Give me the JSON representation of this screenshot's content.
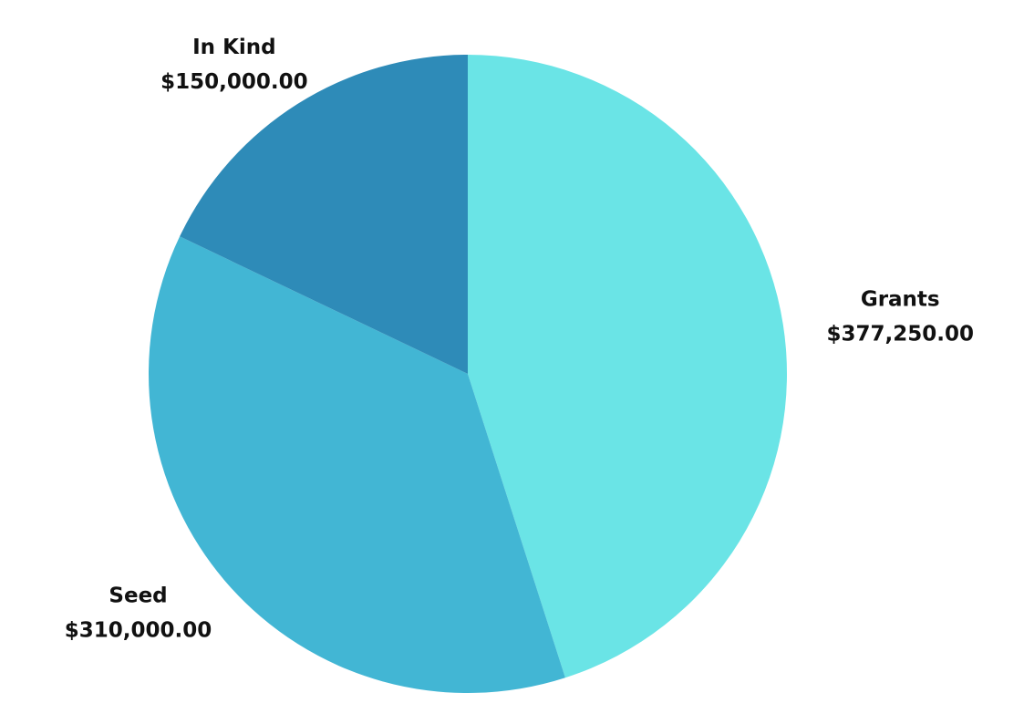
{
  "chart_data": {
    "type": "pie",
    "categories": [
      "Grants",
      "Seed",
      "In Kind"
    ],
    "values": [
      377250,
      310000,
      150000
    ],
    "value_labels": [
      "$377,250.00",
      "$310,000.00",
      "$150,000.00"
    ],
    "colors": [
      "#6ae4e6",
      "#42b6d4",
      "#2e8bb8"
    ]
  }
}
